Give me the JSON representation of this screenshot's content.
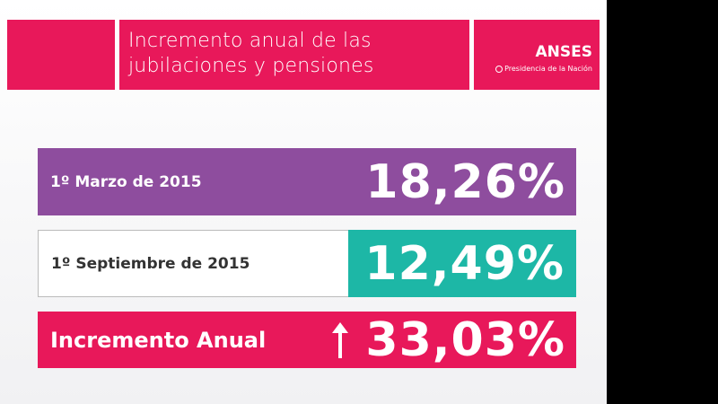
{
  "header": {
    "title_line1": "Incremento anual de las",
    "title_line2": "jubilaciones y pensiones",
    "logo": {
      "brand": "ANSES",
      "subtitle": "Presidencia de la Nación"
    }
  },
  "rows": [
    {
      "label": "1º Marzo de 2015",
      "value": "18,26%",
      "color": "#8e4d9e"
    },
    {
      "label": "1º Septiembre de 2015",
      "value": "12,49%",
      "color": "#1db7a6"
    },
    {
      "label": "Incremento Anual",
      "value": "33,03%",
      "color": "#e8185a",
      "icon": "arrow-up-icon"
    }
  ],
  "colors": {
    "brand_pink": "#e8185a"
  }
}
